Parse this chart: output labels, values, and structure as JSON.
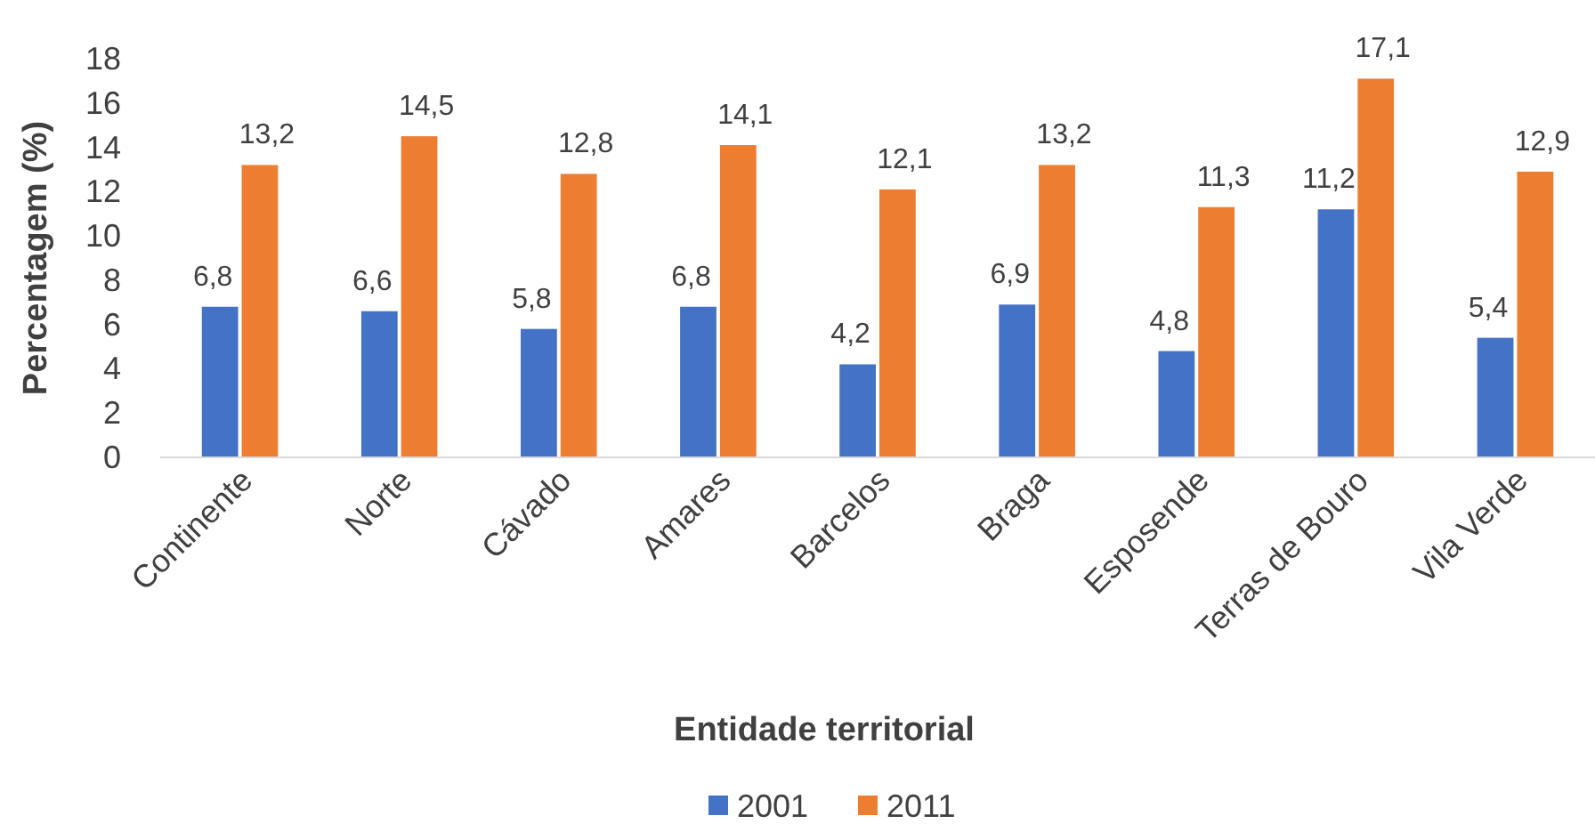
{
  "chart_data": {
    "type": "bar",
    "xlabel": "Entidade territorial",
    "ylabel": "Percentagem (%)",
    "categories": [
      "Continente",
      "Norte",
      "Cávado",
      "Amares",
      "Barcelos",
      "Braga",
      "Esposende",
      "Terras de Bouro",
      "Vila Verde"
    ],
    "series": [
      {
        "name": "2001",
        "color": "#4472c4",
        "values": [
          6.8,
          6.6,
          5.8,
          6.8,
          4.2,
          6.9,
          4.8,
          11.2,
          5.4
        ],
        "value_labels": [
          "6,8",
          "6,6",
          "5,8",
          "6,8",
          "4,2",
          "6,9",
          "4,8",
          "11,2",
          "5,4"
        ]
      },
      {
        "name": "2011",
        "color": "#ed7d31",
        "values": [
          13.2,
          14.5,
          12.8,
          14.1,
          12.1,
          13.2,
          11.3,
          17.1,
          12.9
        ],
        "value_labels": [
          "13,2",
          "14,5",
          "12,8",
          "14,1",
          "12,1",
          "13,2",
          "11,3",
          "17,1",
          "12,9"
        ]
      }
    ],
    "ylim": [
      0,
      18
    ],
    "yticks": [
      0,
      2,
      4,
      6,
      8,
      10,
      12,
      14,
      16,
      18
    ],
    "grid": false,
    "legend": "bottom"
  }
}
